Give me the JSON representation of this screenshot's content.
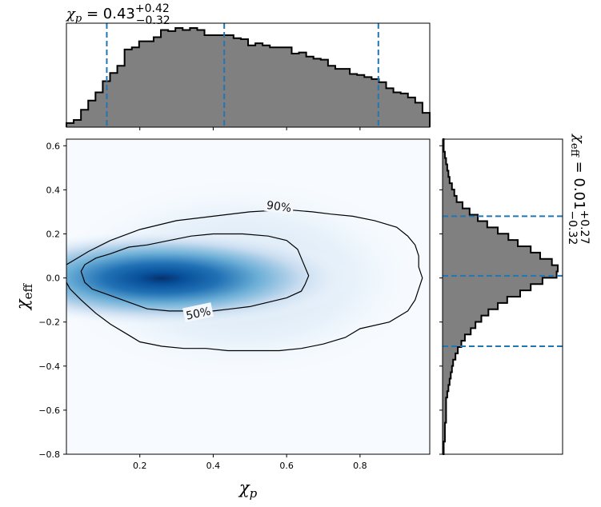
{
  "chart_data": [
    {
      "type": "histogram",
      "title_main": "χ",
      "title_sub": "p",
      "title_value": " = 0.43",
      "title_plus": "+0.42",
      "title_minus": "−0.32",
      "xlim": [
        0,
        0.99
      ],
      "bins": [
        0.0,
        0.0198,
        0.0396,
        0.0594,
        0.0792,
        0.099,
        0.1188,
        0.1386,
        0.1584,
        0.1782,
        0.198,
        0.2178,
        0.2376,
        0.2574,
        0.2772,
        0.297,
        0.3168,
        0.3366,
        0.3564,
        0.3762,
        0.396,
        0.4158,
        0.4356,
        0.4554,
        0.4752,
        0.495,
        0.5148,
        0.5346,
        0.5544,
        0.5742,
        0.594,
        0.6138,
        0.6336,
        0.6534,
        0.6732,
        0.693,
        0.7128,
        0.7326,
        0.7524,
        0.7722,
        0.792,
        0.8118,
        0.8316,
        0.8514,
        0.8712,
        0.891,
        0.9108,
        0.9306,
        0.9504,
        0.9702,
        0.99
      ],
      "counts": [
        0.04,
        0.07,
        0.17,
        0.26,
        0.34,
        0.45,
        0.53,
        0.6,
        0.76,
        0.78,
        0.84,
        0.84,
        0.88,
        0.95,
        0.94,
        0.97,
        0.95,
        0.97,
        0.95,
        0.9,
        0.9,
        0.9,
        0.9,
        0.87,
        0.86,
        0.8,
        0.82,
        0.8,
        0.78,
        0.78,
        0.78,
        0.72,
        0.73,
        0.69,
        0.67,
        0.66,
        0.6,
        0.57,
        0.57,
        0.52,
        0.51,
        0.49,
        0.47,
        0.44,
        0.38,
        0.34,
        0.33,
        0.29,
        0.24,
        0.14
      ],
      "quantiles": [
        0.11,
        0.43,
        0.85
      ],
      "fill_color": "#808080",
      "line_color": "#1f77b4"
    },
    {
      "type": "heatmap",
      "xlabel_main": "χ",
      "xlabel_sub": "p",
      "ylabel_main": "χ",
      "ylabel_sub": "eff",
      "xlim": [
        0,
        0.99
      ],
      "ylim": [
        -0.8,
        0.63
      ],
      "xticks": [
        0.2,
        0.4,
        0.6,
        0.8
      ],
      "xtick_labels": [
        "0.2",
        "0.4",
        "0.6",
        "0.8"
      ],
      "yticks": [
        -0.8,
        -0.6,
        -0.4,
        -0.2,
        0.0,
        0.2,
        0.4,
        0.6
      ],
      "ytick_labels": [
        "−0.8",
        "−0.6",
        "−0.4",
        "−0.2",
        "0.0",
        "0.2",
        "0.4",
        "0.6"
      ],
      "colormap": "Blues",
      "density_peak": {
        "x": 0.27,
        "y": 0.0
      },
      "contour_50": [
        [
          0.04,
          0.03
        ],
        [
          0.05,
          0.06
        ],
        [
          0.08,
          0.09
        ],
        [
          0.12,
          0.11
        ],
        [
          0.17,
          0.14
        ],
        [
          0.22,
          0.15
        ],
        [
          0.28,
          0.17
        ],
        [
          0.34,
          0.19
        ],
        [
          0.4,
          0.2
        ],
        [
          0.48,
          0.2
        ],
        [
          0.55,
          0.19
        ],
        [
          0.6,
          0.17
        ],
        [
          0.63,
          0.13
        ],
        [
          0.64,
          0.09
        ],
        [
          0.65,
          0.05
        ],
        [
          0.66,
          0.01
        ],
        [
          0.65,
          -0.03
        ],
        [
          0.64,
          -0.06
        ],
        [
          0.6,
          -0.09
        ],
        [
          0.55,
          -0.11
        ],
        [
          0.5,
          -0.13
        ],
        [
          0.45,
          -0.14
        ],
        [
          0.4,
          -0.15
        ],
        [
          0.34,
          -0.15
        ],
        [
          0.28,
          -0.15
        ],
        [
          0.22,
          -0.14
        ],
        [
          0.17,
          -0.11
        ],
        [
          0.12,
          -0.08
        ],
        [
          0.07,
          -0.05
        ],
        [
          0.05,
          -0.02
        ],
        [
          0.04,
          0.03
        ]
      ],
      "contour_90": [
        [
          0.0,
          0.06
        ],
        [
          0.02,
          0.08
        ],
        [
          0.06,
          0.12
        ],
        [
          0.12,
          0.17
        ],
        [
          0.2,
          0.22
        ],
        [
          0.3,
          0.26
        ],
        [
          0.4,
          0.28
        ],
        [
          0.5,
          0.3
        ],
        [
          0.6,
          0.31
        ],
        [
          0.67,
          0.3
        ],
        [
          0.72,
          0.29
        ],
        [
          0.78,
          0.28
        ],
        [
          0.84,
          0.26
        ],
        [
          0.9,
          0.23
        ],
        [
          0.93,
          0.19
        ],
        [
          0.95,
          0.15
        ],
        [
          0.96,
          0.1
        ],
        [
          0.96,
          0.05
        ],
        [
          0.97,
          0.0
        ],
        [
          0.96,
          -0.05
        ],
        [
          0.95,
          -0.1
        ],
        [
          0.93,
          -0.15
        ],
        [
          0.88,
          -0.2
        ],
        [
          0.8,
          -0.23
        ],
        [
          0.76,
          -0.27
        ],
        [
          0.7,
          -0.3
        ],
        [
          0.64,
          -0.32
        ],
        [
          0.58,
          -0.33
        ],
        [
          0.5,
          -0.33
        ],
        [
          0.44,
          -0.33
        ],
        [
          0.38,
          -0.32
        ],
        [
          0.32,
          -0.32
        ],
        [
          0.26,
          -0.31
        ],
        [
          0.2,
          -0.29
        ],
        [
          0.17,
          -0.26
        ],
        [
          0.12,
          -0.21
        ],
        [
          0.08,
          -0.16
        ],
        [
          0.04,
          -0.1
        ],
        [
          0.01,
          -0.05
        ],
        [
          0.0,
          -0.02
        ]
      ],
      "contour_labels": [
        "90%",
        "50%"
      ],
      "contour_label_pos": [
        {
          "x": 0.66,
          "y": 0.325,
          "rot": 8
        },
        {
          "x": 0.44,
          "y": -0.16,
          "rot": -12
        }
      ]
    },
    {
      "type": "histogram_horizontal",
      "title_main": "χ",
      "title_sub": "eff",
      "title_value": " = 0.01",
      "title_plus": "+0.27",
      "title_minus": "−0.32",
      "ylim": [
        -0.8,
        0.63
      ],
      "bins": [
        -0.8,
        -0.7714,
        -0.7428,
        -0.7142,
        -0.6856,
        -0.657,
        -0.6284,
        -0.5998,
        -0.5712,
        -0.5426,
        -0.514,
        -0.4854,
        -0.4568,
        -0.4282,
        -0.3996,
        -0.371,
        -0.3424,
        -0.3138,
        -0.2852,
        -0.2566,
        -0.228,
        -0.1994,
        -0.1708,
        -0.1422,
        -0.1136,
        -0.085,
        -0.0564,
        -0.0278,
        0.0008,
        0.0294,
        0.058,
        0.0866,
        0.1152,
        0.1438,
        0.1724,
        0.201,
        0.2296,
        0.2582,
        0.2868,
        0.3154,
        0.344,
        0.3726,
        0.4012,
        0.4298,
        0.4584,
        0.487,
        0.5156,
        0.5442,
        0.5728,
        0.6014,
        0.63
      ],
      "counts": [
        0.01,
        0.01,
        0.02,
        0.02,
        0.02,
        0.03,
        0.03,
        0.03,
        0.03,
        0.04,
        0.05,
        0.06,
        0.07,
        0.08,
        0.09,
        0.11,
        0.13,
        0.16,
        0.19,
        0.24,
        0.28,
        0.33,
        0.39,
        0.47,
        0.55,
        0.66,
        0.75,
        0.85,
        0.97,
        0.98,
        0.93,
        0.83,
        0.75,
        0.64,
        0.56,
        0.47,
        0.38,
        0.3,
        0.23,
        0.17,
        0.12,
        0.1,
        0.08,
        0.06,
        0.05,
        0.04,
        0.03,
        0.02,
        0.01,
        0.01
      ],
      "quantiles": [
        -0.31,
        0.01,
        0.28
      ],
      "fill_color": "#808080",
      "line_color": "#1f77b4"
    }
  ]
}
